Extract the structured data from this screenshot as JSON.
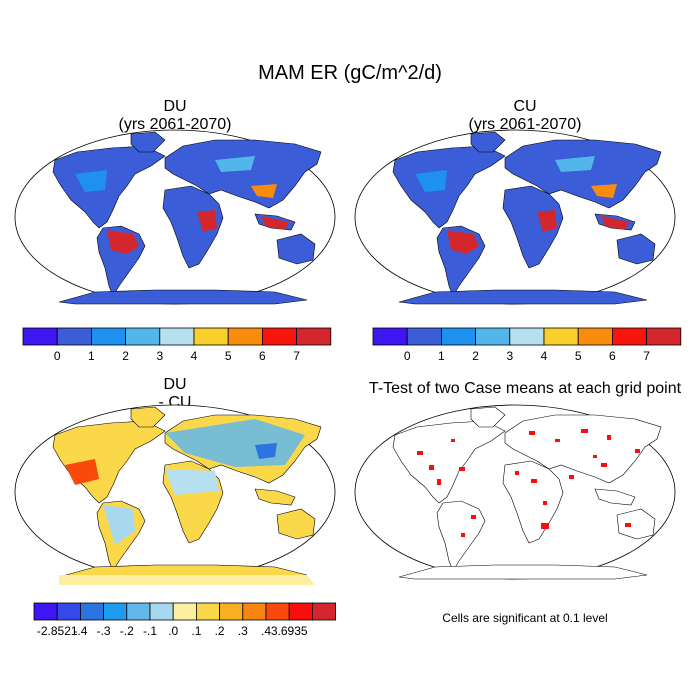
{
  "figure": {
    "title": "MAM ER (gC/m^2/d)"
  },
  "panels": [
    {
      "line1": "DU",
      "line2": "(yrs 2061-2070)"
    },
    {
      "line1": "CU",
      "line2": "(yrs 2061-2070)"
    },
    {
      "line1": "DU",
      "line2": "- CU"
    },
    {
      "line1": "T-Test of two Case means at each grid point",
      "line2": ""
    }
  ],
  "colorbars": {
    "absolute": {
      "colors": [
        "#3d16f2",
        "#3b5ed8",
        "#1e90f0",
        "#52b6ea",
        "#b6e0f0",
        "#f9cf2c",
        "#f98c0c",
        "#f8160c",
        "#d3272d"
      ],
      "labels": [
        "0",
        "1",
        "2",
        "3",
        "4",
        "5",
        "6",
        "7"
      ]
    },
    "difference": {
      "colors": [
        "#3d16f2",
        "#3349ea",
        "#2c74e0",
        "#1e9cf0",
        "#62b8ea",
        "#a8d8ee",
        "#fcf0a0",
        "#fbd84a",
        "#f9b020",
        "#f88412",
        "#f84a0a",
        "#f80e0e",
        "#d3272d"
      ],
      "labels": [
        "-2.8521",
        "-.4",
        "-.3",
        "-.2",
        "-.1",
        ".0",
        ".1",
        ".2",
        ".3",
        ".4",
        "3.6935"
      ]
    }
  },
  "significance_note": "Cells are significant at 0.1 level"
}
